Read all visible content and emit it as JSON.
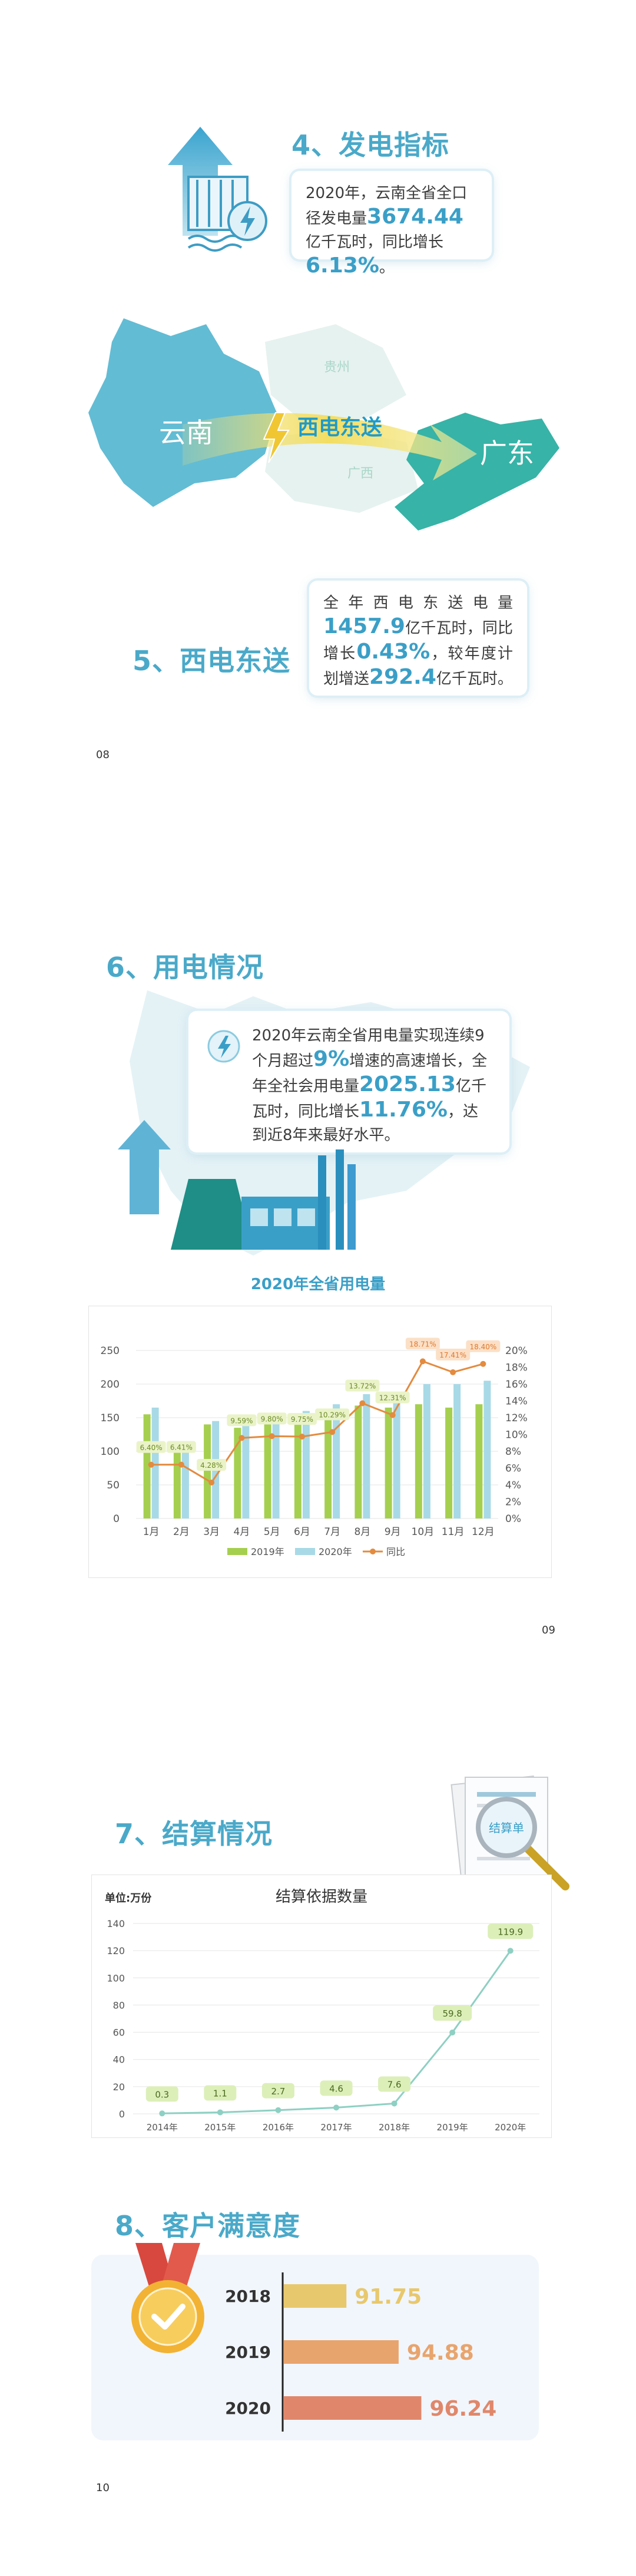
{
  "sections": {
    "s4": {
      "title": "4、发电指标",
      "text": {
        "p1": "2020年，云南全省全口径发电量",
        "v1": "3674.44",
        "p2": "亿千瓦时，同比增长",
        "v2": "6.13%",
        "p3": "。"
      }
    },
    "map": {
      "yunnan": "云南",
      "guangdong": "广东",
      "guizhou": "贵州",
      "guangxi": "广西",
      "arrow_label": "西电东送"
    },
    "s5": {
      "title": "5、西电东送",
      "text": {
        "p1": "全年西电东送电量",
        "v1": "1457.9",
        "p2": "亿千瓦时，同比增长",
        "v2": "0.43%",
        "p3": "，较年度计划增送",
        "v3": "292.4",
        "p4": "亿千瓦时。"
      }
    },
    "s6": {
      "title": "6、用电情况",
      "text": {
        "p1": "2020年云南全省用电量实现连续9个月超过",
        "v1": "9%",
        "p2": "增速的高速增长，全年全社会用电量",
        "v2": "2025.13",
        "p3": "亿千瓦时，同比增长",
        "v3": "11.76%",
        "p4": "，达到近8年来最好水平。"
      }
    },
    "s7": {
      "title": "7、结算情况",
      "badge": "结算单"
    },
    "s8": {
      "title": "8、客户满意度"
    }
  },
  "page_numbers": {
    "p08": "08",
    "p09": "09",
    "p10": "10"
  },
  "colors": {
    "accent": "#4aa9c9",
    "green": "#a5cf4f",
    "lightblue": "#a8d9e6",
    "orange": "#e38b3f",
    "teal": "#8ed0c3"
  },
  "chart_data": [
    {
      "type": "bar",
      "title": "2020年全省用电量",
      "categories": [
        "1月",
        "2月",
        "3月",
        "4月",
        "5月",
        "6月",
        "7月",
        "8月",
        "9月",
        "10月",
        "11月",
        "12月"
      ],
      "series": [
        {
          "name": "2019年",
          "type": "bar",
          "values": [
            155,
            100,
            140,
            135,
            140,
            148,
            155,
            168,
            165,
            170,
            165,
            170
          ]
        },
        {
          "name": "2020年",
          "type": "bar",
          "values": [
            165,
            105,
            145,
            148,
            155,
            160,
            170,
            185,
            185,
            200,
            200,
            205
          ]
        },
        {
          "name": "同比",
          "type": "line",
          "axis": "right",
          "values": [
            6.4,
            6.41,
            4.28,
            9.59,
            9.8,
            9.75,
            10.29,
            13.72,
            12.31,
            18.71,
            17.41,
            18.4
          ],
          "labels": [
            "6.40%",
            "6.41%",
            "4.28%",
            "9.59%",
            "9.80%",
            "9.75%",
            "10.29%",
            "13.72%",
            "12.31%",
            "18.71%",
            "17.41%",
            "18.40%"
          ]
        }
      ],
      "yticks_left": [
        "0",
        "50",
        "100",
        "150",
        "200",
        "250"
      ],
      "yticks_right": [
        "0%",
        "2%",
        "4%",
        "6%",
        "8%",
        "10%",
        "12%",
        "14%",
        "16%",
        "18%",
        "20%"
      ],
      "ylim_left": [
        0,
        250
      ],
      "ylim_right": [
        0,
        20
      ],
      "grid": true,
      "legend": "bottom"
    },
    {
      "type": "line",
      "title": "结算依据数量",
      "unit_label": "单位:万份",
      "categories": [
        "2014年",
        "2015年",
        "2016年",
        "2017年",
        "2018年",
        "2019年",
        "2020年"
      ],
      "values": [
        0.3,
        1.1,
        2.7,
        4.6,
        7.6,
        59.8,
        119.9
      ],
      "labels": [
        "0.3",
        "1.1",
        "2.7",
        "4.6",
        "7.6",
        "59.8",
        "119.9"
      ],
      "yticks": [
        "0",
        "20",
        "40",
        "60",
        "80",
        "100",
        "120",
        "140"
      ],
      "ylim": [
        0,
        140
      ],
      "grid": true
    },
    {
      "type": "bar",
      "orientation": "horizontal",
      "categories": [
        "2018",
        "2019",
        "2020"
      ],
      "values": [
        91.75,
        94.88,
        96.24
      ],
      "labels": [
        "91.75",
        "94.88",
        "96.24"
      ],
      "colors": [
        "#e8c86d",
        "#e8a46d",
        "#e0876b"
      ]
    }
  ]
}
